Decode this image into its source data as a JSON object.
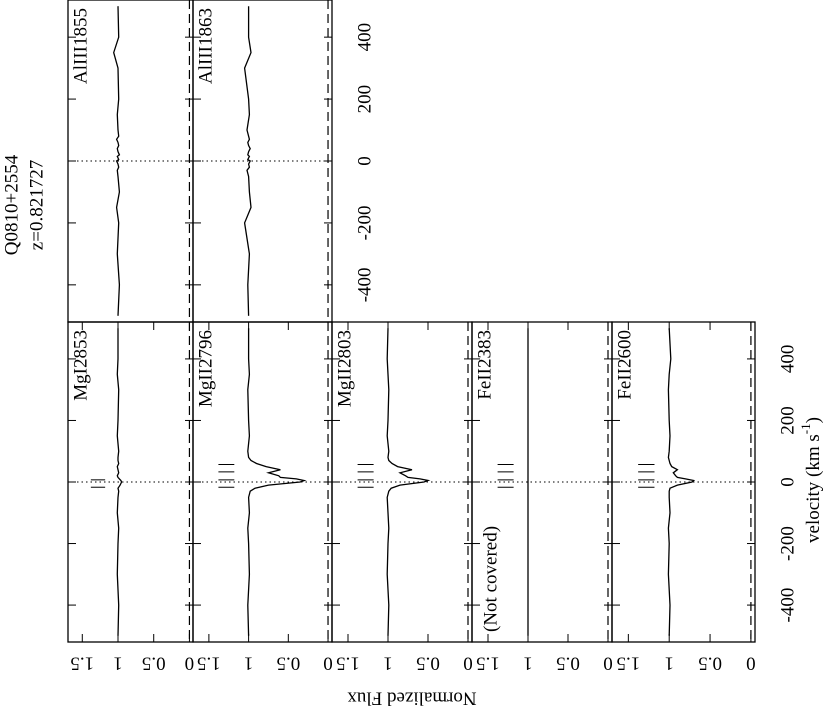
{
  "figure": {
    "title": "Q0810+2554",
    "subtitle": "z=0.821727",
    "x_label": [
      "velocity (km s",
      "-1",
      ")"
    ],
    "y_label": "Normalized Flux"
  },
  "chart_data": [
    {
      "type": "line",
      "label": "AlIII1855",
      "x": [
        -500,
        -400,
        -300,
        -200,
        -150,
        -100,
        -50,
        -30,
        -20,
        -10,
        0,
        5,
        10,
        15,
        20,
        30,
        40,
        50,
        60,
        70,
        80,
        100,
        150,
        200,
        300,
        350,
        400,
        500
      ],
      "values": [
        1.0,
        0.98,
        1.01,
        0.99,
        1.02,
        0.98,
        1.0,
        1.01,
        0.99,
        1.0,
        1.02,
        0.99,
        1.0,
        1.01,
        0.98,
        1.0,
        1.01,
        0.99,
        1.0,
        1.02,
        0.99,
        1.0,
        1.01,
        0.99,
        1.0,
        1.06,
        0.99,
        1.0
      ],
      "xlim": [
        -520,
        520
      ],
      "ylim": [
        -0.05,
        1.7
      ],
      "components": []
    },
    {
      "type": "line",
      "label": "AlIII1863",
      "x": [
        -500,
        -400,
        -300,
        -200,
        -150,
        -100,
        -50,
        -30,
        -20,
        -10,
        0,
        5,
        10,
        15,
        20,
        30,
        40,
        50,
        60,
        70,
        80,
        100,
        150,
        200,
        300,
        350,
        400,
        500
      ],
      "values": [
        1.0,
        1.01,
        0.99,
        1.05,
        0.97,
        0.99,
        1.0,
        1.02,
        0.99,
        1.0,
        0.98,
        1.01,
        1.0,
        0.99,
        1.01,
        1.0,
        0.98,
        1.0,
        1.01,
        0.99,
        1.0,
        1.02,
        0.99,
        1.0,
        1.05,
        0.97,
        1.0,
        1.0
      ],
      "xlim": [
        -520,
        520
      ],
      "ylim": [
        -0.05,
        1.7
      ],
      "components": [],
      "xticks": [
        -400,
        -200,
        0,
        200,
        400
      ]
    },
    {
      "type": "line",
      "label": "MgI2853",
      "x": [
        -500,
        -400,
        -300,
        -200,
        -150,
        -100,
        -50,
        -30,
        -20,
        -10,
        0,
        5,
        10,
        15,
        20,
        30,
        40,
        50,
        60,
        70,
        80,
        100,
        150,
        200,
        300,
        350,
        400,
        500
      ],
      "values": [
        1.0,
        0.99,
        1.01,
        1.0,
        0.99,
        1.01,
        1.0,
        0.99,
        1.0,
        0.97,
        0.95,
        0.96,
        0.98,
        1.0,
        1.01,
        0.99,
        1.0,
        1.01,
        0.99,
        1.0,
        1.0,
        0.99,
        1.01,
        1.0,
        0.99,
        1.01,
        1.0,
        1.0
      ],
      "xlim": [
        -520,
        520
      ],
      "ylim": [
        -0.05,
        1.7
      ],
      "components": [
        -17,
        7
      ],
      "yticks": [
        0,
        0.5,
        1,
        1.5
      ]
    },
    {
      "type": "line",
      "label": "MgII2796",
      "x": [
        -500,
        -400,
        -300,
        -200,
        -150,
        -100,
        -50,
        -30,
        -20,
        -10,
        0,
        5,
        10,
        15,
        20,
        30,
        40,
        50,
        60,
        70,
        80,
        100,
        150,
        200,
        300,
        350,
        400,
        500
      ],
      "values": [
        1.0,
        1.01,
        0.99,
        1.0,
        1.01,
        0.99,
        1.0,
        0.98,
        0.92,
        0.75,
        0.35,
        0.3,
        0.4,
        0.6,
        0.62,
        0.75,
        0.6,
        0.78,
        0.9,
        0.97,
        1.0,
        1.01,
        0.99,
        1.0,
        1.01,
        0.99,
        1.0,
        1.0
      ],
      "xlim": [
        -520,
        520
      ],
      "ylim": [
        -0.05,
        1.7
      ],
      "components": [
        -17,
        7,
        33,
        57
      ],
      "yticks": [
        0,
        0.5,
        1,
        1.5
      ]
    },
    {
      "type": "line",
      "label": "MgII2803",
      "x": [
        -500,
        -400,
        -300,
        -200,
        -150,
        -100,
        -50,
        -30,
        -20,
        -10,
        0,
        5,
        10,
        15,
        20,
        30,
        40,
        50,
        60,
        70,
        80,
        100,
        150,
        200,
        300,
        350,
        400,
        500
      ],
      "values": [
        1.0,
        0.99,
        1.01,
        1.0,
        0.99,
        1.0,
        1.01,
        0.99,
        0.96,
        0.85,
        0.55,
        0.5,
        0.6,
        0.75,
        0.78,
        0.85,
        0.7,
        0.88,
        0.95,
        0.99,
        1.0,
        0.99,
        1.01,
        1.0,
        0.99,
        1.0,
        1.01,
        1.0
      ],
      "xlim": [
        -520,
        520
      ],
      "ylim": [
        -0.05,
        1.7
      ],
      "components": [
        -17,
        7,
        33,
        57
      ],
      "yticks": [
        0,
        0.5,
        1,
        1.5
      ]
    },
    {
      "type": "line",
      "label": "FeII2383",
      "annotation": "(Not covered)",
      "x": [
        -500,
        500
      ],
      "values": [
        1.0,
        1.0
      ],
      "xlim": [
        -520,
        520
      ],
      "ylim": [
        -0.05,
        1.7
      ],
      "components": [
        -17,
        7,
        33,
        57
      ],
      "yticks": [
        0,
        0.5,
        1,
        1.5
      ]
    },
    {
      "type": "line",
      "label": "FeII2600",
      "x": [
        -500,
        -400,
        -300,
        -200,
        -150,
        -100,
        -50,
        -30,
        -20,
        -10,
        0,
        5,
        10,
        15,
        20,
        30,
        40,
        50,
        60,
        70,
        80,
        100,
        150,
        200,
        300,
        350,
        400,
        500
      ],
      "values": [
        1.0,
        0.99,
        1.01,
        1.0,
        1.01,
        0.99,
        1.0,
        1.0,
        0.99,
        0.9,
        0.72,
        0.7,
        0.8,
        0.9,
        0.92,
        0.95,
        0.9,
        0.97,
        0.99,
        1.0,
        1.01,
        1.0,
        0.99,
        1.0,
        1.01,
        1.0,
        0.98,
        1.0
      ],
      "xlim": [
        -520,
        520
      ],
      "ylim": [
        -0.05,
        1.7
      ],
      "components": [
        -17,
        7,
        33,
        57
      ],
      "yticks": [
        0,
        0.5,
        1,
        1.5
      ],
      "xticks": [
        -400,
        -200,
        0,
        200,
        400
      ]
    }
  ]
}
